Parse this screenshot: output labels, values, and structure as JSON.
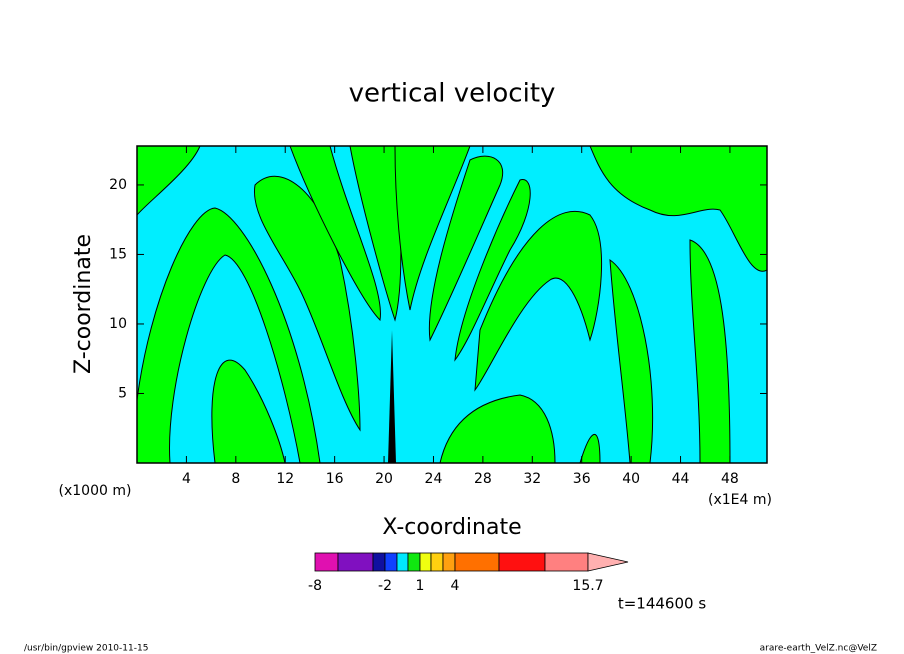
{
  "chart_data": {
    "type": "contour",
    "title": "vertical velocity",
    "x_label": "X-coordinate",
    "y_label": "Z-coordinate",
    "x_unit_left": "(x1000 m)",
    "x_unit_right": "(x1E4 m)",
    "xlim": [
      0,
      51
    ],
    "xticks": [
      4,
      8,
      12,
      16,
      20,
      24,
      28,
      32,
      36,
      40,
      44,
      48
    ],
    "ylim": [
      0,
      22.8
    ],
    "yticks": [
      5,
      10,
      15,
      20
    ],
    "colorbar": {
      "colors": [
        "#e010b0",
        "#8010c0",
        "#1010a0",
        "#1040ff",
        "#00e8ff",
        "#10e810",
        "#f0ff10",
        "#ffd010",
        "#ffa010",
        "#ff7000",
        "#ff1010",
        "#ff8080",
        "#ffb0b0"
      ],
      "ticks": [
        -8,
        -2,
        1,
        4,
        15.7
      ]
    },
    "time_label": "t=144600 s",
    "footer_left": "/usr/bin/gpview   2010-11-15",
    "footer_right": "arare-earth_VelZ.nc@VelZ"
  }
}
